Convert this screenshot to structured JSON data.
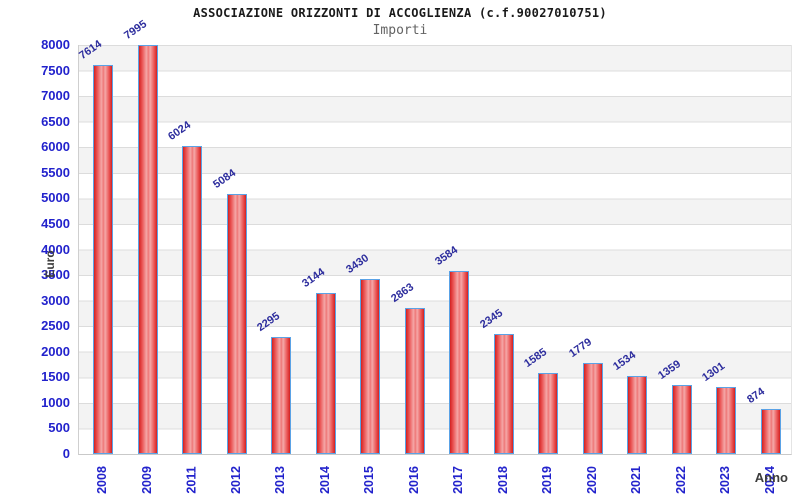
{
  "chart_data": {
    "type": "bar",
    "title": "ASSOCIAZIONE ORIZZONTI DI ACCOGLIENZA (c.f.90027010751)",
    "subtitle": "Importi",
    "xlabel": "Anno",
    "ylabel": "Euro",
    "categories": [
      "2008",
      "2009",
      "2011",
      "2012",
      "2013",
      "2014",
      "2015",
      "2016",
      "2017",
      "2018",
      "2019",
      "2020",
      "2021",
      "2022",
      "2023",
      "2024"
    ],
    "values": [
      7614,
      7995,
      6024,
      5084,
      2295,
      3144,
      3430,
      2863,
      3584,
      2345,
      1585,
      1779,
      1534,
      1359,
      1301,
      874
    ],
    "ylim": [
      0,
      8000
    ],
    "yticks": [
      0,
      500,
      1000,
      1500,
      2000,
      2500,
      3000,
      3500,
      4000,
      4500,
      5000,
      5500,
      6000,
      6500,
      7000,
      7500,
      8000
    ],
    "grid": "horizontal gridlines every 500 with alternating gray/white bands",
    "legend": "none",
    "value_labels": "above each bar, rotated diagonally",
    "colors": {
      "bar_edge": "#d32121",
      "bar_center": "#f5a8a8",
      "bar_border": "#5aa2e6",
      "tick_label": "#2222cc",
      "value_label": "#2c2c9d",
      "band": "#f3f3f3",
      "gridline": "#dcdcdc",
      "title": "#1a1a1a",
      "subtitle": "#636363",
      "axis_title": "#3c3c3c"
    }
  }
}
